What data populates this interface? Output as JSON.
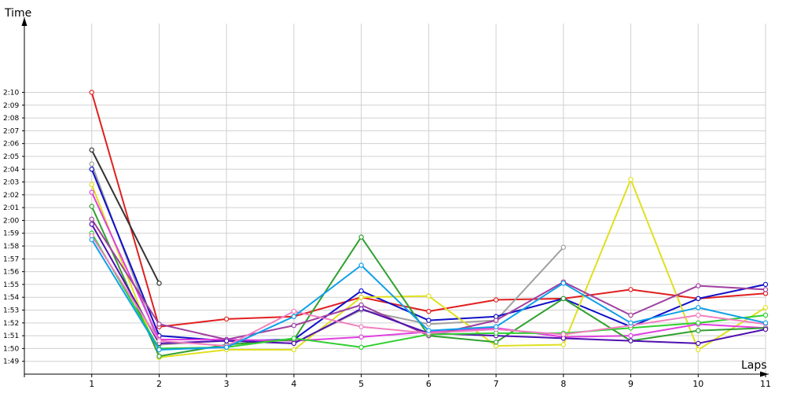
{
  "chart_data": {
    "type": "line",
    "ylabel": "Time",
    "xlabel": "Laps",
    "x": [
      1,
      2,
      3,
      4,
      5,
      6,
      7,
      8,
      9,
      10,
      11
    ],
    "y_ticks": [
      "1:49",
      "1:50",
      "1:51",
      "1:52",
      "1:53",
      "1:54",
      "1:55",
      "1:56",
      "1:57",
      "1:58",
      "1:59",
      "2:00",
      "2:01",
      "2:02",
      "2:03",
      "2:04",
      "2:05",
      "2:06",
      "2:07",
      "2:08",
      "2:09",
      "2:10"
    ],
    "ylim_seconds": [
      108.0,
      135.0
    ],
    "xlim": [
      0.0,
      11.0
    ],
    "grid": true,
    "legend": false,
    "series": [
      {
        "color": "#e02020",
        "values": [
          130.0,
          111.7,
          112.3,
          112.5,
          114.0,
          112.9,
          113.8,
          113.9,
          114.6,
          113.9,
          114.3
        ]
      },
      {
        "color": "#333333",
        "values": [
          125.5,
          115.1,
          null,
          null,
          null,
          null,
          null,
          null,
          null,
          null,
          null
        ]
      },
      {
        "color": "#a0a0a0",
        "values": [
          124.4,
          110.3,
          110.6,
          110.4,
          113.0,
          111.9,
          112.2,
          117.9,
          null,
          null,
          null
        ]
      },
      {
        "color": "#1010c8",
        "values": [
          124.0,
          111.0,
          110.6,
          110.7,
          114.5,
          112.2,
          112.5,
          113.9,
          111.7,
          113.9,
          115.0
        ]
      },
      {
        "color": "#e0e020",
        "values": [
          122.8,
          109.3,
          109.9,
          109.9,
          114.0,
          114.1,
          110.2,
          110.3,
          123.2,
          109.9,
          113.2
        ]
      },
      {
        "color": "#e040e0",
        "values": [
          122.2,
          110.7,
          110.7,
          110.6,
          110.9,
          111.3,
          111.6,
          110.9,
          111.0,
          111.9,
          111.6
        ]
      },
      {
        "color": "#30a030",
        "values": [
          121.1,
          109.4,
          110.3,
          110.7,
          118.7,
          111.0,
          110.5,
          113.9,
          110.6,
          111.4,
          111.6
        ]
      },
      {
        "color": "#a040a0",
        "values": [
          120.1,
          111.9,
          110.7,
          111.8,
          113.4,
          111.0,
          112.2,
          115.2,
          112.6,
          114.9,
          114.6
        ]
      },
      {
        "color": "#5010b0",
        "values": [
          119.7,
          110.4,
          110.6,
          110.4,
          113.1,
          111.2,
          111.0,
          110.8,
          110.6,
          110.4,
          111.5
        ]
      },
      {
        "color": "#30d030",
        "values": [
          119.0,
          110.0,
          110.1,
          110.8,
          110.1,
          111.1,
          111.2,
          111.2,
          111.6,
          112.0,
          112.6
        ]
      },
      {
        "color": "#f080c0",
        "values": [
          118.8,
          110.6,
          110.2,
          112.9,
          111.7,
          111.2,
          111.5,
          111.1,
          111.8,
          112.6,
          111.9
        ]
      },
      {
        "color": "#10a0e8",
        "values": [
          118.5,
          109.9,
          110.1,
          112.5,
          116.5,
          111.4,
          111.7,
          115.1,
          112.0,
          113.2,
          112.0
        ]
      }
    ]
  }
}
